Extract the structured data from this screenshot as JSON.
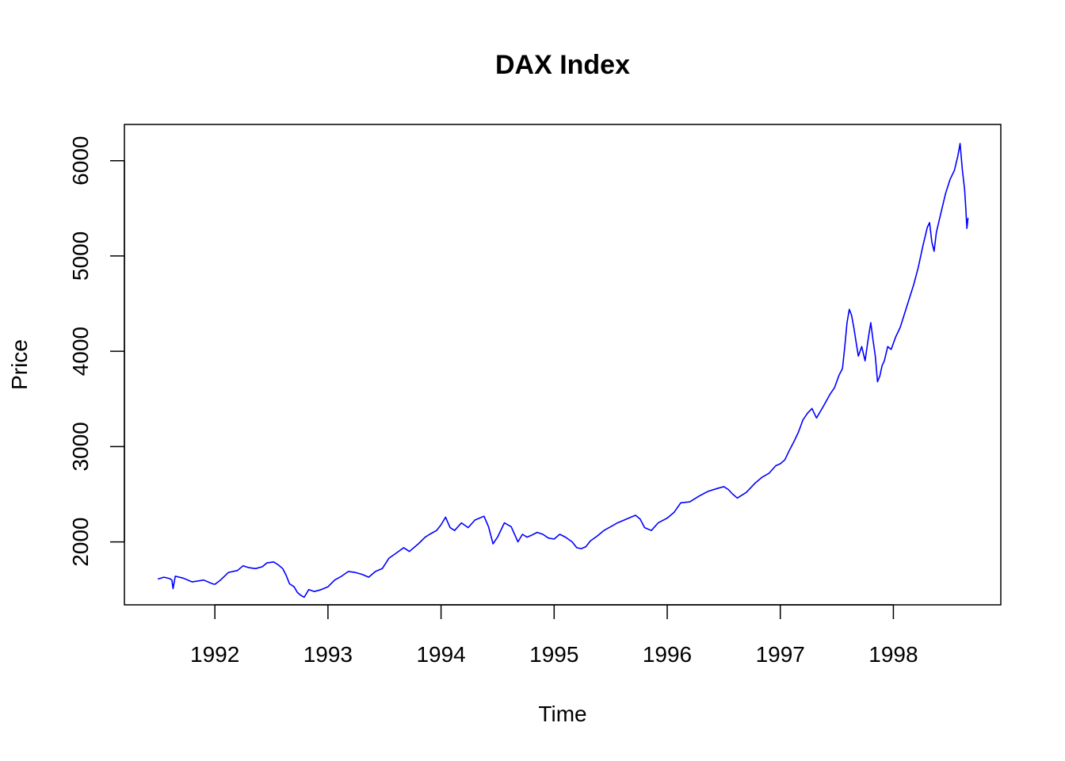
{
  "chart_data": {
    "type": "line",
    "title": "DAX Index",
    "xlabel": "Time",
    "ylabel": "Price",
    "xlim": [
      1991.2,
      1998.95
    ],
    "ylim": [
      1340,
      6380
    ],
    "x_ticks": [
      1992,
      1993,
      1994,
      1995,
      1996,
      1997,
      1998
    ],
    "x_tick_labels": [
      "1992",
      "1993",
      "1994",
      "1995",
      "1996",
      "1997",
      "1998"
    ],
    "y_ticks": [
      2000,
      3000,
      4000,
      5000,
      6000
    ],
    "y_tick_labels": [
      "2000",
      "3000",
      "4000",
      "5000",
      "6000"
    ],
    "grid": false,
    "legend": "none",
    "line_color": "#0000ff",
    "series": [
      {
        "x": [
          1991.496,
          1991.55,
          1991.6,
          1991.62,
          1991.63,
          1991.65,
          1991.72,
          1991.8,
          1991.9,
          1991.98,
          1992.0,
          1992.05,
          1992.12,
          1992.2,
          1992.25,
          1992.3,
          1992.36,
          1992.42,
          1992.46,
          1992.52,
          1992.56,
          1992.6,
          1992.63,
          1992.66,
          1992.7,
          1992.73,
          1992.76,
          1992.79,
          1992.83,
          1992.88,
          1992.94,
          1993.0,
          1993.06,
          1993.12,
          1993.18,
          1993.24,
          1993.3,
          1993.36,
          1993.42,
          1993.48,
          1993.54,
          1993.6,
          1993.67,
          1993.72,
          1993.8,
          1993.86,
          1993.9,
          1993.96,
          1994.0,
          1994.04,
          1994.08,
          1994.12,
          1994.18,
          1994.24,
          1994.3,
          1994.34,
          1994.38,
          1994.42,
          1994.46,
          1994.5,
          1994.56,
          1994.62,
          1994.68,
          1994.72,
          1994.76,
          1994.8,
          1994.85,
          1994.9,
          1994.95,
          1995.0,
          1995.05,
          1995.1,
          1995.16,
          1995.2,
          1995.24,
          1995.28,
          1995.32,
          1995.38,
          1995.44,
          1995.5,
          1995.56,
          1995.62,
          1995.68,
          1995.72,
          1995.76,
          1995.8,
          1995.86,
          1995.92,
          1996.0,
          1996.06,
          1996.12,
          1996.2,
          1996.28,
          1996.36,
          1996.44,
          1996.5,
          1996.54,
          1996.58,
          1996.62,
          1996.7,
          1996.78,
          1996.84,
          1996.9,
          1996.96,
          1997.0,
          1997.04,
          1997.08,
          1997.12,
          1997.16,
          1997.2,
          1997.24,
          1997.28,
          1997.32,
          1997.38,
          1997.44,
          1997.48,
          1997.52,
          1997.55,
          1997.57,
          1997.59,
          1997.61,
          1997.63,
          1997.65,
          1997.67,
          1997.69,
          1997.72,
          1997.75,
          1997.78,
          1997.8,
          1997.82,
          1997.84,
          1997.86,
          1997.88,
          1997.9,
          1997.92,
          1997.95,
          1997.98,
          1998.02,
          1998.06,
          1998.1,
          1998.14,
          1998.18,
          1998.22,
          1998.26,
          1998.3,
          1998.32,
          1998.34,
          1998.36,
          1998.38,
          1998.42,
          1998.46,
          1998.5,
          1998.54,
          1998.57,
          1998.59,
          1998.61,
          1998.63,
          1998.64,
          1998.65,
          1998.66
        ],
        "y": [
          1610,
          1630,
          1615,
          1600,
          1510,
          1640,
          1620,
          1580,
          1600,
          1560,
          1555,
          1600,
          1680,
          1700,
          1750,
          1730,
          1720,
          1740,
          1780,
          1790,
          1760,
          1720,
          1650,
          1560,
          1530,
          1470,
          1440,
          1420,
          1500,
          1480,
          1500,
          1530,
          1600,
          1640,
          1690,
          1680,
          1660,
          1630,
          1690,
          1720,
          1830,
          1880,
          1940,
          1900,
          1980,
          2050,
          2080,
          2120,
          2180,
          2260,
          2150,
          2120,
          2200,
          2150,
          2230,
          2250,
          2270,
          2160,
          1980,
          2050,
          2200,
          2160,
          2000,
          2080,
          2050,
          2070,
          2100,
          2080,
          2040,
          2030,
          2080,
          2050,
          2000,
          1940,
          1930,
          1950,
          2010,
          2060,
          2120,
          2160,
          2200,
          2230,
          2260,
          2280,
          2240,
          2150,
          2120,
          2200,
          2250,
          2310,
          2410,
          2420,
          2480,
          2530,
          2560,
          2580,
          2550,
          2500,
          2460,
          2520,
          2620,
          2680,
          2720,
          2800,
          2820,
          2860,
          2960,
          3050,
          3150,
          3280,
          3350,
          3400,
          3300,
          3420,
          3550,
          3620,
          3750,
          3820,
          4050,
          4300,
          4440,
          4380,
          4250,
          4100,
          3950,
          4050,
          3900,
          4150,
          4300,
          4120,
          3950,
          3680,
          3740,
          3850,
          3900,
          4050,
          4020,
          4150,
          4250,
          4400,
          4550,
          4700,
          4880,
          5100,
          5300,
          5350,
          5150,
          5050,
          5250,
          5450,
          5650,
          5800,
          5900,
          6050,
          6180,
          5900,
          5700,
          5500,
          5290,
          5400
        ]
      }
    ]
  }
}
